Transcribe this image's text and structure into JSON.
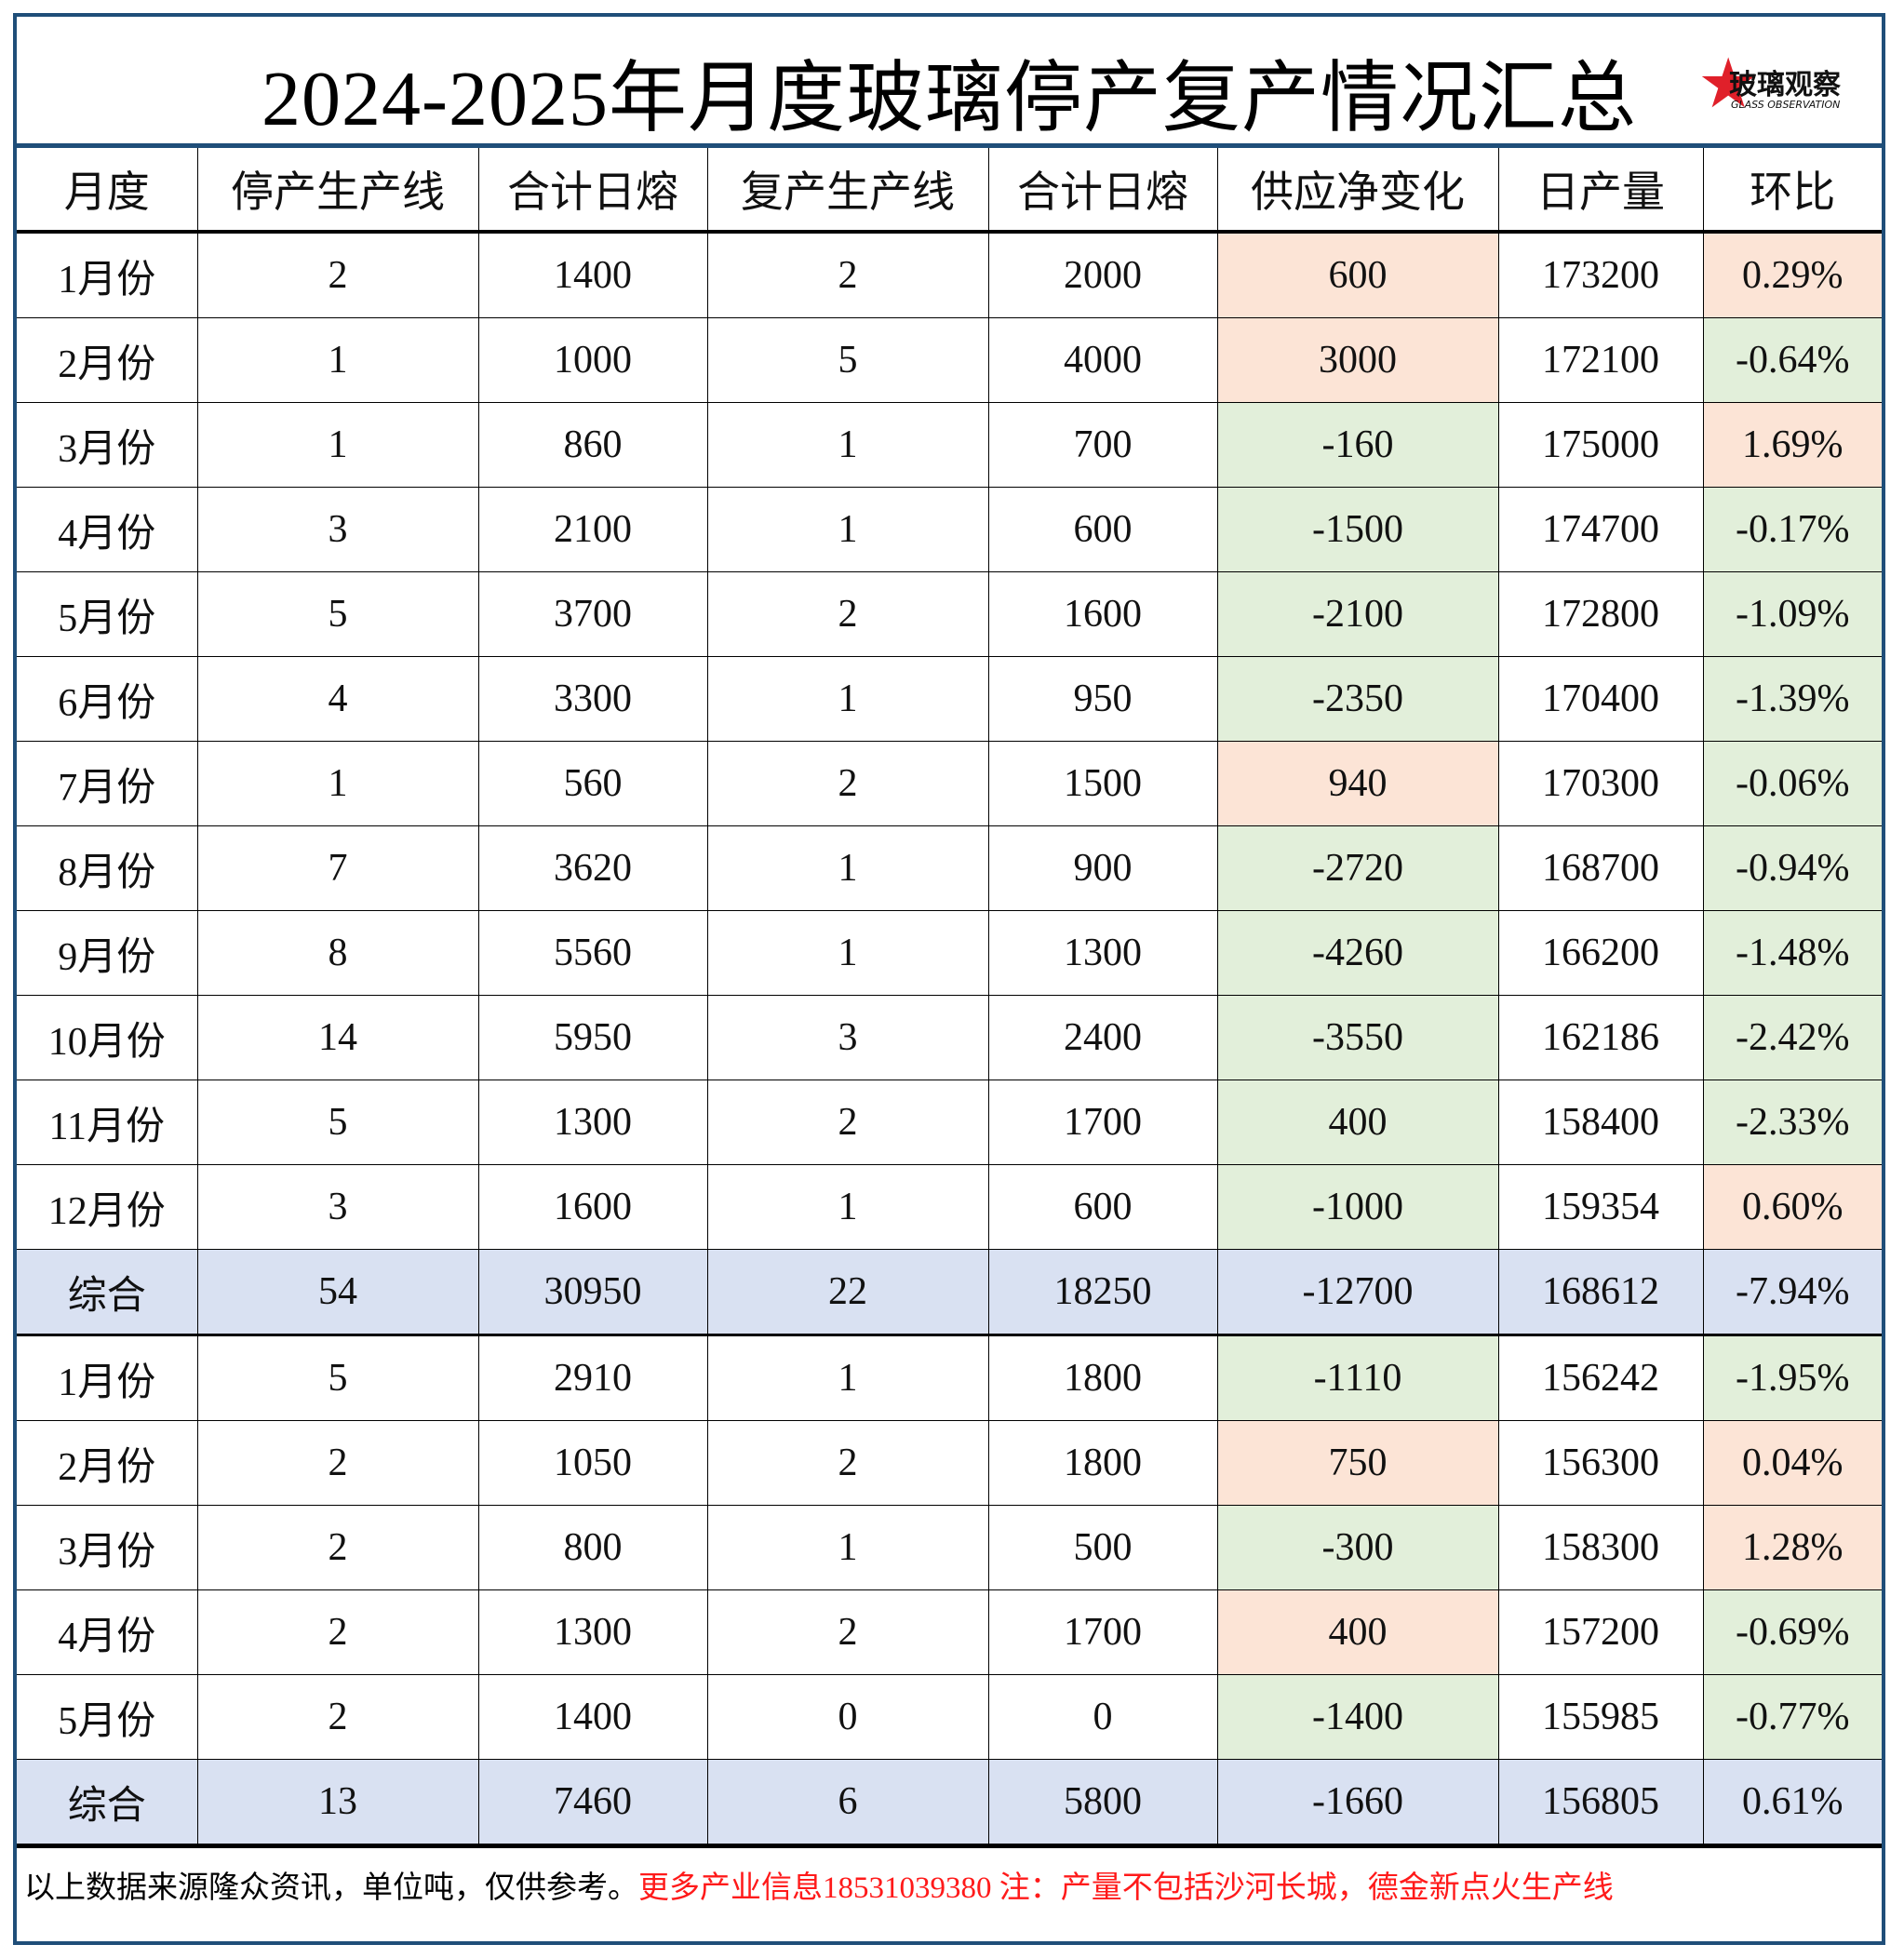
{
  "title": "2024-2025年月度玻璃停产复产情况汇总",
  "logo": {
    "text_cn": "玻璃观察",
    "text_en": "GLASS OBSERVATION"
  },
  "colors": {
    "border": "#1f4e79",
    "positive": "#fce4d6",
    "negative": "#e2efda",
    "summary": "#d9e1f2",
    "note_red": "#ff1a1a"
  },
  "table": {
    "headers": [
      "月度",
      "停产生产线",
      "合计日熔",
      "复产生产线",
      "合计日熔",
      "供应净变化",
      "日产量",
      "环比"
    ],
    "rows": [
      {
        "cells": [
          "1月份",
          "2",
          "1400",
          "2",
          "2000",
          "600",
          "173200",
          "0.29%"
        ],
        "change_color": "pink",
        "mom_color": "pink"
      },
      {
        "cells": [
          "2月份",
          "1",
          "1000",
          "5",
          "4000",
          "3000",
          "172100",
          "-0.64%"
        ],
        "change_color": "pink",
        "mom_color": "green"
      },
      {
        "cells": [
          "3月份",
          "1",
          "860",
          "1",
          "700",
          "-160",
          "175000",
          "1.69%"
        ],
        "change_color": "green",
        "mom_color": "pink"
      },
      {
        "cells": [
          "4月份",
          "3",
          "2100",
          "1",
          "600",
          "-1500",
          "174700",
          "-0.17%"
        ],
        "change_color": "green",
        "mom_color": "green"
      },
      {
        "cells": [
          "5月份",
          "5",
          "3700",
          "2",
          "1600",
          "-2100",
          "172800",
          "-1.09%"
        ],
        "change_color": "green",
        "mom_color": "green"
      },
      {
        "cells": [
          "6月份",
          "4",
          "3300",
          "1",
          "950",
          "-2350",
          "170400",
          "-1.39%"
        ],
        "change_color": "green",
        "mom_color": "green"
      },
      {
        "cells": [
          "7月份",
          "1",
          "560",
          "2",
          "1500",
          "940",
          "170300",
          "-0.06%"
        ],
        "change_color": "pink",
        "mom_color": "green"
      },
      {
        "cells": [
          "8月份",
          "7",
          "3620",
          "1",
          "900",
          "-2720",
          "168700",
          "-0.94%"
        ],
        "change_color": "green",
        "mom_color": "green"
      },
      {
        "cells": [
          "9月份",
          "8",
          "5560",
          "1",
          "1300",
          "-4260",
          "166200",
          "-1.48%"
        ],
        "change_color": "green",
        "mom_color": "green"
      },
      {
        "cells": [
          "10月份",
          "14",
          "5950",
          "3",
          "2400",
          "-3550",
          "162186",
          "-2.42%"
        ],
        "change_color": "green",
        "mom_color": "green"
      },
      {
        "cells": [
          "11月份",
          "5",
          "1300",
          "2",
          "1700",
          "400",
          "158400",
          "-2.33%"
        ],
        "change_color": "green",
        "mom_color": "green"
      },
      {
        "cells": [
          "12月份",
          "3",
          "1600",
          "1",
          "600",
          "-1000",
          "159354",
          "0.60%"
        ],
        "change_color": "green",
        "mom_color": "pink"
      },
      {
        "cells": [
          "综合",
          "54",
          "30950",
          "22",
          "18250",
          "-12700",
          "168612",
          "-7.94%"
        ],
        "summary": true
      },
      {
        "cells": [
          "1月份",
          "5",
          "2910",
          "1",
          "1800",
          "-1110",
          "156242",
          "-1.95%"
        ],
        "change_color": "green",
        "mom_color": "green"
      },
      {
        "cells": [
          "2月份",
          "2",
          "1050",
          "2",
          "1800",
          "750",
          "156300",
          "0.04%"
        ],
        "change_color": "pink",
        "mom_color": "pink"
      },
      {
        "cells": [
          "3月份",
          "2",
          "800",
          "1",
          "500",
          "-300",
          "158300",
          "1.28%"
        ],
        "change_color": "green",
        "mom_color": "pink"
      },
      {
        "cells": [
          "4月份",
          "2",
          "1300",
          "2",
          "1700",
          "400",
          "157200",
          "-0.69%"
        ],
        "change_color": "pink",
        "mom_color": "green"
      },
      {
        "cells": [
          "5月份",
          "2",
          "1400",
          "0",
          "0",
          "-1400",
          "155985",
          "-0.77%"
        ],
        "change_color": "green",
        "mom_color": "green"
      },
      {
        "cells": [
          "综合",
          "13",
          "7460",
          "6",
          "5800",
          "-1660",
          "156805",
          "0.61%"
        ],
        "summary": true
      }
    ]
  },
  "footer": {
    "source_note": "以上数据来源隆众资讯，单位吨，仅供参考。",
    "contact_note": "更多产业信息18531039380 注：产量不包括沙河长城，德金新点火生产线"
  }
}
